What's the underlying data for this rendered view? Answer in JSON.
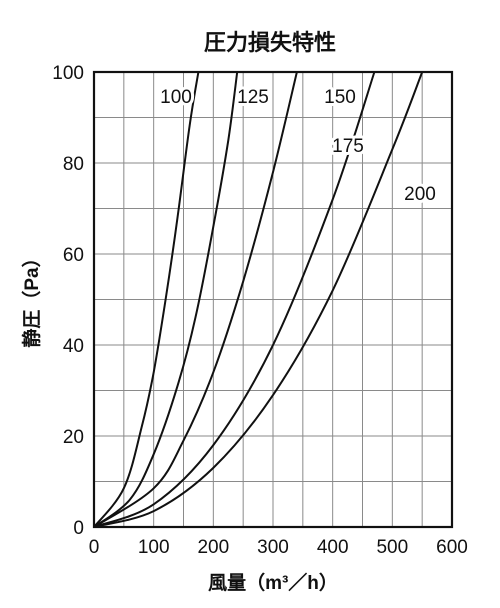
{
  "chart_data": {
    "type": "line",
    "title": "圧力損失特性",
    "xlabel": "風量（m³／h）",
    "ylabel": "静圧（Pa）",
    "xlim": [
      0,
      600
    ],
    "ylim": [
      0,
      100
    ],
    "x_ticks": [
      "0",
      "100",
      "200",
      "300",
      "400",
      "500",
      "600"
    ],
    "y_ticks": [
      "0",
      "20",
      "40",
      "60",
      "80",
      "100"
    ],
    "grid": true,
    "minor_grid": true,
    "series": [
      {
        "name": "100",
        "points": [
          [
            0,
            0
          ],
          [
            50,
            8.5
          ],
          [
            80,
            22
          ],
          [
            100,
            34
          ],
          [
            120,
            50
          ],
          [
            140,
            68
          ],
          [
            160,
            88
          ],
          [
            175,
            100
          ]
        ]
      },
      {
        "name": "125",
        "points": [
          [
            0,
            0
          ],
          [
            60,
            6
          ],
          [
            100,
            16
          ],
          [
            140,
            31
          ],
          [
            170,
            46
          ],
          [
            200,
            66
          ],
          [
            225,
            85
          ],
          [
            240,
            100
          ]
        ]
      },
      {
        "name": "150",
        "points": [
          [
            0,
            0
          ],
          [
            100,
            8.5
          ],
          [
            150,
            19
          ],
          [
            200,
            34
          ],
          [
            250,
            54
          ],
          [
            300,
            78
          ],
          [
            340,
            100
          ]
        ]
      },
      {
        "name": "175",
        "points": [
          [
            0,
            0
          ],
          [
            100,
            5
          ],
          [
            200,
            18
          ],
          [
            300,
            40
          ],
          [
            400,
            72
          ],
          [
            470,
            100
          ]
        ]
      },
      {
        "name": "200",
        "points": [
          [
            0,
            0
          ],
          [
            100,
            3.5
          ],
          [
            200,
            13
          ],
          [
            300,
            29
          ],
          [
            400,
            52
          ],
          [
            500,
            83
          ],
          [
            550,
            100
          ]
        ]
      }
    ]
  }
}
